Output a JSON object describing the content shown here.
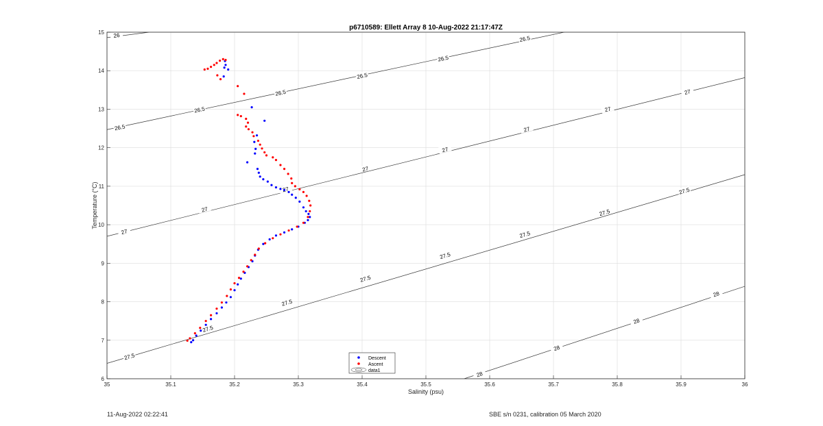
{
  "chart_data": {
    "type": "scatter",
    "title": "p6710589: Ellett Array 8 10-Aug-2022 21:17:47Z",
    "xlabel": "Salinity (psu)",
    "ylabel": "Temperature (°C)",
    "xlim": [
      35,
      36
    ],
    "ylim": [
      6,
      15
    ],
    "xticks": [
      "35",
      "35.1",
      "35.2",
      "35.3",
      "35.4",
      "35.5",
      "35.6",
      "35.7",
      "35.8",
      "35.9",
      "36"
    ],
    "yticks": [
      "6",
      "7",
      "8",
      "9",
      "10",
      "11",
      "12",
      "13",
      "14",
      "15"
    ],
    "grid": true,
    "legend_position": "bottom-center",
    "series": [
      {
        "name": "Descent",
        "color": "#0000ff",
        "marker": "dot",
        "points": [
          [
            35.185,
            14.25
          ],
          [
            35.186,
            14.15
          ],
          [
            35.184,
            14.08
          ],
          [
            35.19,
            14.03
          ],
          [
            35.183,
            13.85
          ],
          [
            35.227,
            13.05
          ],
          [
            35.247,
            12.7
          ],
          [
            35.235,
            12.32
          ],
          [
            35.231,
            12.15
          ],
          [
            35.233,
            11.97
          ],
          [
            35.232,
            11.85
          ],
          [
            35.22,
            11.62
          ],
          [
            35.236,
            11.45
          ],
          [
            35.238,
            11.35
          ],
          [
            35.24,
            11.25
          ],
          [
            35.245,
            11.18
          ],
          [
            35.252,
            11.12
          ],
          [
            35.258,
            11.03
          ],
          [
            35.265,
            10.97
          ],
          [
            35.272,
            10.93
          ],
          [
            35.278,
            10.9
          ],
          [
            35.285,
            10.85
          ],
          [
            35.29,
            10.78
          ],
          [
            35.296,
            10.7
          ],
          [
            35.302,
            10.6
          ],
          [
            35.308,
            10.45
          ],
          [
            35.312,
            10.35
          ],
          [
            35.316,
            10.28
          ],
          [
            35.318,
            10.2
          ],
          [
            35.315,
            10.12
          ],
          [
            35.31,
            10.05
          ],
          [
            35.3,
            9.95
          ],
          [
            35.29,
            9.88
          ],
          [
            35.278,
            9.8
          ],
          [
            35.265,
            9.72
          ],
          [
            35.255,
            9.62
          ],
          [
            35.245,
            9.5
          ],
          [
            35.237,
            9.35
          ],
          [
            35.232,
            9.2
          ],
          [
            35.228,
            9.05
          ],
          [
            35.222,
            8.9
          ],
          [
            35.216,
            8.75
          ],
          [
            35.21,
            8.6
          ],
          [
            35.205,
            8.45
          ],
          [
            35.2,
            8.3
          ],
          [
            35.194,
            8.12
          ],
          [
            35.187,
            7.98
          ],
          [
            35.18,
            7.85
          ],
          [
            35.172,
            7.7
          ],
          [
            35.163,
            7.55
          ],
          [
            35.155,
            7.4
          ],
          [
            35.147,
            7.25
          ],
          [
            35.14,
            7.12
          ],
          [
            35.135,
            7.0
          ],
          [
            35.132,
            6.95
          ]
        ]
      },
      {
        "name": "Ascent",
        "color": "#ff0000",
        "marker": "dot",
        "points": [
          [
            35.153,
            14.03
          ],
          [
            35.158,
            14.05
          ],
          [
            35.163,
            14.1
          ],
          [
            35.168,
            14.15
          ],
          [
            35.172,
            14.2
          ],
          [
            35.177,
            14.26
          ],
          [
            35.182,
            14.3
          ],
          [
            35.186,
            14.28
          ],
          [
            35.173,
            13.88
          ],
          [
            35.178,
            13.78
          ],
          [
            35.205,
            13.6
          ],
          [
            35.215,
            13.4
          ],
          [
            35.205,
            12.85
          ],
          [
            35.21,
            12.82
          ],
          [
            35.218,
            12.75
          ],
          [
            35.221,
            12.65
          ],
          [
            35.218,
            12.55
          ],
          [
            35.222,
            12.48
          ],
          [
            35.228,
            12.4
          ],
          [
            35.23,
            12.3
          ],
          [
            35.237,
            12.18
          ],
          [
            35.24,
            12.08
          ],
          [
            35.243,
            11.98
          ],
          [
            35.247,
            11.88
          ],
          [
            35.25,
            11.8
          ],
          [
            35.26,
            11.75
          ],
          [
            35.265,
            11.68
          ],
          [
            35.272,
            11.55
          ],
          [
            35.278,
            11.45
          ],
          [
            35.284,
            11.32
          ],
          [
            35.289,
            11.2
          ],
          [
            35.29,
            11.08
          ],
          [
            35.295,
            11.0
          ],
          [
            35.302,
            10.92
          ],
          [
            35.308,
            10.85
          ],
          [
            35.313,
            10.75
          ],
          [
            35.317,
            10.62
          ],
          [
            35.319,
            10.5
          ],
          [
            35.318,
            10.35
          ],
          [
            35.315,
            10.2
          ],
          [
            35.308,
            10.05
          ],
          [
            35.298,
            9.95
          ],
          [
            35.285,
            9.85
          ],
          [
            35.272,
            9.75
          ],
          [
            35.26,
            9.65
          ],
          [
            35.248,
            9.52
          ],
          [
            35.238,
            9.38
          ],
          [
            35.232,
            9.22
          ],
          [
            35.226,
            9.08
          ],
          [
            35.22,
            8.92
          ],
          [
            35.214,
            8.78
          ],
          [
            35.207,
            8.62
          ],
          [
            35.2,
            8.48
          ],
          [
            35.194,
            8.32
          ],
          [
            35.188,
            8.15
          ],
          [
            35.18,
            7.98
          ],
          [
            35.172,
            7.82
          ],
          [
            35.163,
            7.65
          ],
          [
            35.155,
            7.5
          ],
          [
            35.146,
            7.32
          ],
          [
            35.138,
            7.18
          ],
          [
            35.13,
            7.05
          ],
          [
            35.126,
            6.99
          ]
        ]
      }
    ],
    "legend_extra": "data1",
    "contours": [
      {
        "label": "26",
        "points": [
          [
            35,
            14.86
          ],
          [
            35.066,
            15.0
          ]
        ]
      },
      {
        "label": "26.5",
        "points": [
          [
            35,
            12.47
          ],
          [
            36,
            16.0
          ]
        ]
      },
      {
        "label": "27",
        "points": [
          [
            35,
            9.7
          ],
          [
            36,
            13.82
          ]
        ]
      },
      {
        "label": "27.5",
        "points": [
          [
            35,
            6.4
          ],
          [
            36,
            11.3
          ]
        ]
      },
      {
        "label": "28",
        "points": [
          [
            35.56,
            6.0
          ],
          [
            36,
            8.4
          ]
        ]
      }
    ],
    "contour_label_positions": [
      {
        "label": "26",
        "x": 35.015,
        "y": 14.92
      },
      {
        "label": "26.5",
        "x": 35.02,
        "y": 12.53
      },
      {
        "label": "26.5",
        "x": 35.145,
        "y": 12.99
      },
      {
        "label": "26.5",
        "x": 35.272,
        "y": 13.43
      },
      {
        "label": "26.5",
        "x": 35.4,
        "y": 13.87
      },
      {
        "label": "26.5",
        "x": 35.527,
        "y": 14.32
      },
      {
        "label": "26.5",
        "x": 35.655,
        "y": 14.83
      },
      {
        "label": "27",
        "x": 35.027,
        "y": 9.82
      },
      {
        "label": "27",
        "x": 35.153,
        "y": 10.4
      },
      {
        "label": "27",
        "x": 35.28,
        "y": 10.92
      },
      {
        "label": "27",
        "x": 35.405,
        "y": 11.45
      },
      {
        "label": "27",
        "x": 35.53,
        "y": 11.95
      },
      {
        "label": "27",
        "x": 35.658,
        "y": 12.48
      },
      {
        "label": "27",
        "x": 35.785,
        "y": 13.0
      },
      {
        "label": "27",
        "x": 35.91,
        "y": 13.45
      },
      {
        "label": "27.5",
        "x": 35.035,
        "y": 6.58
      },
      {
        "label": "27.5",
        "x": 35.158,
        "y": 7.3
      },
      {
        "label": "27.5",
        "x": 35.282,
        "y": 7.98
      },
      {
        "label": "27.5",
        "x": 35.405,
        "y": 8.6
      },
      {
        "label": "27.5",
        "x": 35.53,
        "y": 9.2
      },
      {
        "label": "27.5",
        "x": 35.655,
        "y": 9.75
      },
      {
        "label": "27.5",
        "x": 35.78,
        "y": 10.32
      },
      {
        "label": "27.5",
        "x": 35.905,
        "y": 10.88
      },
      {
        "label": "28",
        "x": 35.584,
        "y": 6.12
      },
      {
        "label": "28",
        "x": 35.705,
        "y": 6.8
      },
      {
        "label": "28",
        "x": 35.83,
        "y": 7.5
      },
      {
        "label": "28",
        "x": 35.955,
        "y": 8.2
      }
    ]
  },
  "footer": {
    "left": "11-Aug-2022 02:22:41",
    "right": "SBE s/n 0231, calibration 05 March 2020"
  }
}
